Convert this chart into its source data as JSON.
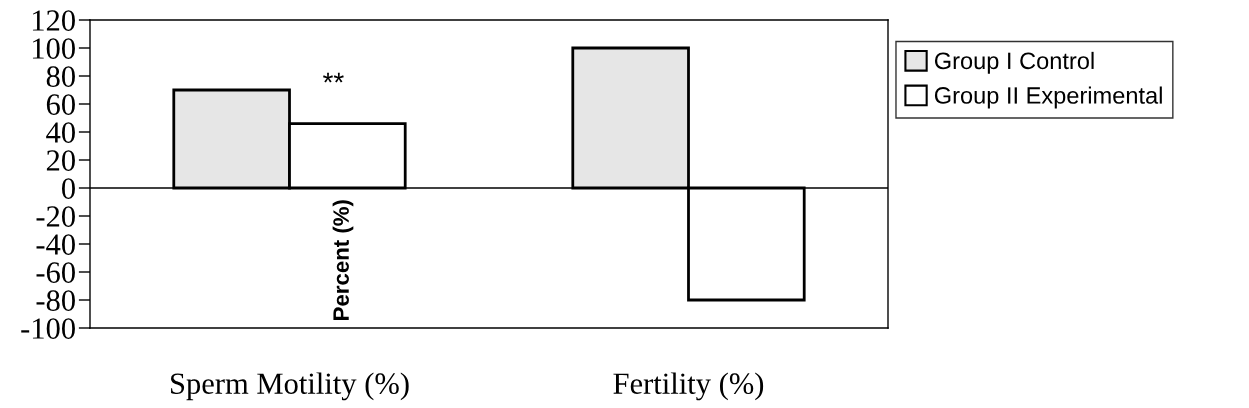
{
  "chart_data": {
    "type": "bar",
    "ylabel": "Percent (%)",
    "categories": [
      "Sperm Motility (%)",
      "Fertility (%)"
    ],
    "series": [
      {
        "name": "Group I Control",
        "color": "#e6e6e6",
        "values": [
          70,
          100
        ]
      },
      {
        "name": "Group II Experimental",
        "color": "#ffffff",
        "values": [
          46,
          -80
        ]
      }
    ],
    "ylim": [
      -100,
      120
    ],
    "yticks": [
      -100,
      -80,
      -60,
      -40,
      -20,
      0,
      20,
      40,
      60,
      80,
      100,
      120
    ],
    "annotations": [
      "**"
    ],
    "ref_lines": [
      {
        "axis": "y",
        "value": 0,
        "color": "#000000"
      }
    ],
    "legend": "right",
    "grid": false
  }
}
